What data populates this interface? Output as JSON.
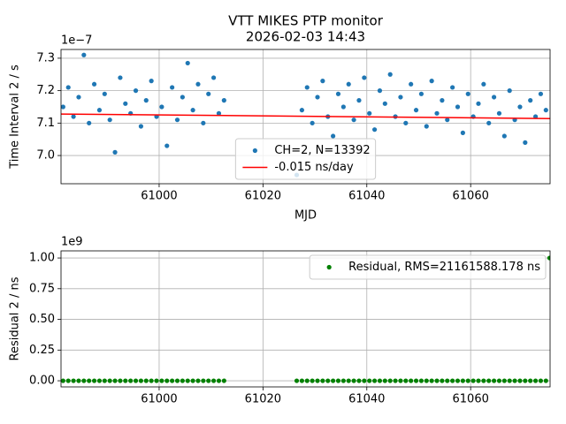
{
  "chart_data": [
    {
      "type": "scatter",
      "title": "VTT MIKES PTP monitor",
      "subtitle": "2026-02-03 14:43",
      "x_label": "MJD",
      "y_label": "Time Interval 2 / s",
      "y_offset_label": "1e−7",
      "xlim": [
        60981.1,
        61075.3
      ],
      "xticks": [
        61000,
        61020,
        61040,
        61060
      ],
      "ylim": [
        6.913,
        7.327
      ],
      "yticks": [
        {
          "value": 7.0,
          "label": "7.0"
        },
        {
          "value": 7.1,
          "label": "7.1"
        },
        {
          "value": 7.2,
          "label": "7.2"
        },
        {
          "value": 7.3,
          "label": "7.3"
        }
      ],
      "grid": true,
      "legend": "lower center",
      "series": [
        {
          "name": "CH=2, N=13392",
          "color": "#1f77b4",
          "type": "scatter",
          "x": [
            60981.5,
            60982.5,
            60983.5,
            60984.5,
            60985.5,
            60986.5,
            60987.5,
            60988.5,
            60989.5,
            60990.5,
            60991.5,
            60992.5,
            60993.5,
            60994.5,
            60995.5,
            60996.5,
            60997.5,
            60998.5,
            60999.5,
            61000.5,
            61001.5,
            61002.5,
            61003.5,
            61004.5,
            61005.5,
            61006.5,
            61007.5,
            61008.5,
            61009.5,
            61010.5,
            61011.5,
            61012.5,
            61026.5,
            61027.5,
            61028.5,
            61029.5,
            61030.5,
            61031.5,
            61032.5,
            61033.5,
            61034.5,
            61035.5,
            61036.5,
            61037.5,
            61038.5,
            61039.5,
            61040.5,
            61041.5,
            61042.5,
            61043.5,
            61044.5,
            61045.5,
            61046.5,
            61047.5,
            61048.5,
            61049.5,
            61050.5,
            61051.5,
            61052.5,
            61053.5,
            61054.5,
            61055.5,
            61056.5,
            61057.5,
            61058.5,
            61059.5,
            61060.5,
            61061.5,
            61062.5,
            61063.5,
            61064.5,
            61065.5,
            61066.5,
            61067.5,
            61068.5,
            61069.5,
            61070.5,
            61071.5,
            61072.5,
            61073.5,
            61074.5
          ],
          "values": [
            7.15,
            7.21,
            7.12,
            7.18,
            7.31,
            7.1,
            7.22,
            7.14,
            7.19,
            7.11,
            7.01,
            7.24,
            7.16,
            7.13,
            7.2,
            7.09,
            7.17,
            7.23,
            7.12,
            7.15,
            7.03,
            7.21,
            7.11,
            7.18,
            7.285,
            7.14,
            7.22,
            7.1,
            7.19,
            7.24,
            7.13,
            7.17,
            6.94,
            7.14,
            7.21,
            7.1,
            7.18,
            7.23,
            7.12,
            7.06,
            7.19,
            7.15,
            7.22,
            7.11,
            7.17,
            7.24,
            7.13,
            7.08,
            7.2,
            7.16,
            7.25,
            7.12,
            7.18,
            7.1,
            7.22,
            7.14,
            7.19,
            7.09,
            7.23,
            7.13,
            7.17,
            7.11,
            7.21,
            7.15,
            7.07,
            7.19,
            7.12,
            7.16,
            7.22,
            7.1,
            7.18,
            7.13,
            7.06,
            7.2,
            7.11,
            7.15,
            7.04,
            7.17,
            7.12,
            7.19,
            7.14
          ]
        },
        {
          "name": "-0.015 ns/day",
          "color": "#ff0000",
          "type": "line",
          "x": [
            60981.1,
            61075.3
          ],
          "values": [
            7.128,
            7.114
          ]
        }
      ]
    },
    {
      "type": "scatter",
      "y_label": "Residual 2 / ns",
      "y_offset_label": "1e9",
      "xlim": [
        60981.1,
        61075.3
      ],
      "xticks": [
        61000,
        61020,
        61040,
        61060
      ],
      "ylim": [
        -0.05,
        1.058
      ],
      "yticks": [
        {
          "value": 0,
          "label": "0.00"
        },
        {
          "value": 0.25,
          "label": "0.25"
        },
        {
          "value": 0.5,
          "label": "0.50"
        },
        {
          "value": 0.75,
          "label": "0.75"
        },
        {
          "value": 1,
          "label": "1.00"
        }
      ],
      "grid": true,
      "legend": "upper right",
      "series": [
        {
          "name": "Residual, RMS=21161588.178 ns",
          "color": "#008000",
          "type": "scatter",
          "x": [
            60981.5,
            60982.5,
            60983.5,
            60984.5,
            60985.5,
            60986.5,
            60987.5,
            60988.5,
            60989.5,
            60990.5,
            60991.5,
            60992.5,
            60993.5,
            60994.5,
            60995.5,
            60996.5,
            60997.5,
            60998.5,
            60999.5,
            61000.5,
            61001.5,
            61002.5,
            61003.5,
            61004.5,
            61005.5,
            61006.5,
            61007.5,
            61008.5,
            61009.5,
            61010.5,
            61011.5,
            61012.5,
            61026.5,
            61027.5,
            61028.5,
            61029.5,
            61030.5,
            61031.5,
            61032.5,
            61033.5,
            61034.5,
            61035.5,
            61036.5,
            61037.5,
            61038.5,
            61039.5,
            61040.5,
            61041.5,
            61042.5,
            61043.5,
            61044.5,
            61045.5,
            61046.5,
            61047.5,
            61048.5,
            61049.5,
            61050.5,
            61051.5,
            61052.5,
            61053.5,
            61054.5,
            61055.5,
            61056.5,
            61057.5,
            61058.5,
            61059.5,
            61060.5,
            61061.5,
            61062.5,
            61063.5,
            61064.5,
            61065.5,
            61066.5,
            61067.5,
            61068.5,
            61069.5,
            61070.5,
            61071.5,
            61072.5,
            61073.5,
            61074.5,
            61075.2
          ],
          "values": [
            0,
            0,
            0,
            0,
            0,
            0,
            0,
            0,
            0,
            0,
            0,
            0,
            0,
            0,
            0,
            0,
            0,
            0,
            0,
            0,
            0,
            0,
            0,
            0,
            0,
            0,
            0,
            0,
            0,
            0,
            0,
            0,
            0,
            0,
            0,
            0,
            0,
            0,
            0,
            0,
            0,
            0,
            0,
            0,
            0,
            0,
            0,
            0,
            0,
            0,
            0,
            0,
            0,
            0,
            0,
            0,
            0,
            0,
            0,
            0,
            0,
            0,
            0,
            0,
            0,
            0,
            0,
            0,
            0,
            0,
            0,
            0,
            0,
            0,
            0,
            0,
            0,
            0,
            0,
            0,
            0,
            1
          ]
        }
      ]
    }
  ]
}
